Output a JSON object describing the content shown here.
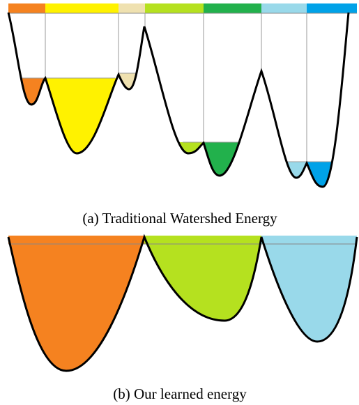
{
  "captions": {
    "a": "(a) Traditional Watershed Energy",
    "b": "(b) Our learned energy"
  }
}
